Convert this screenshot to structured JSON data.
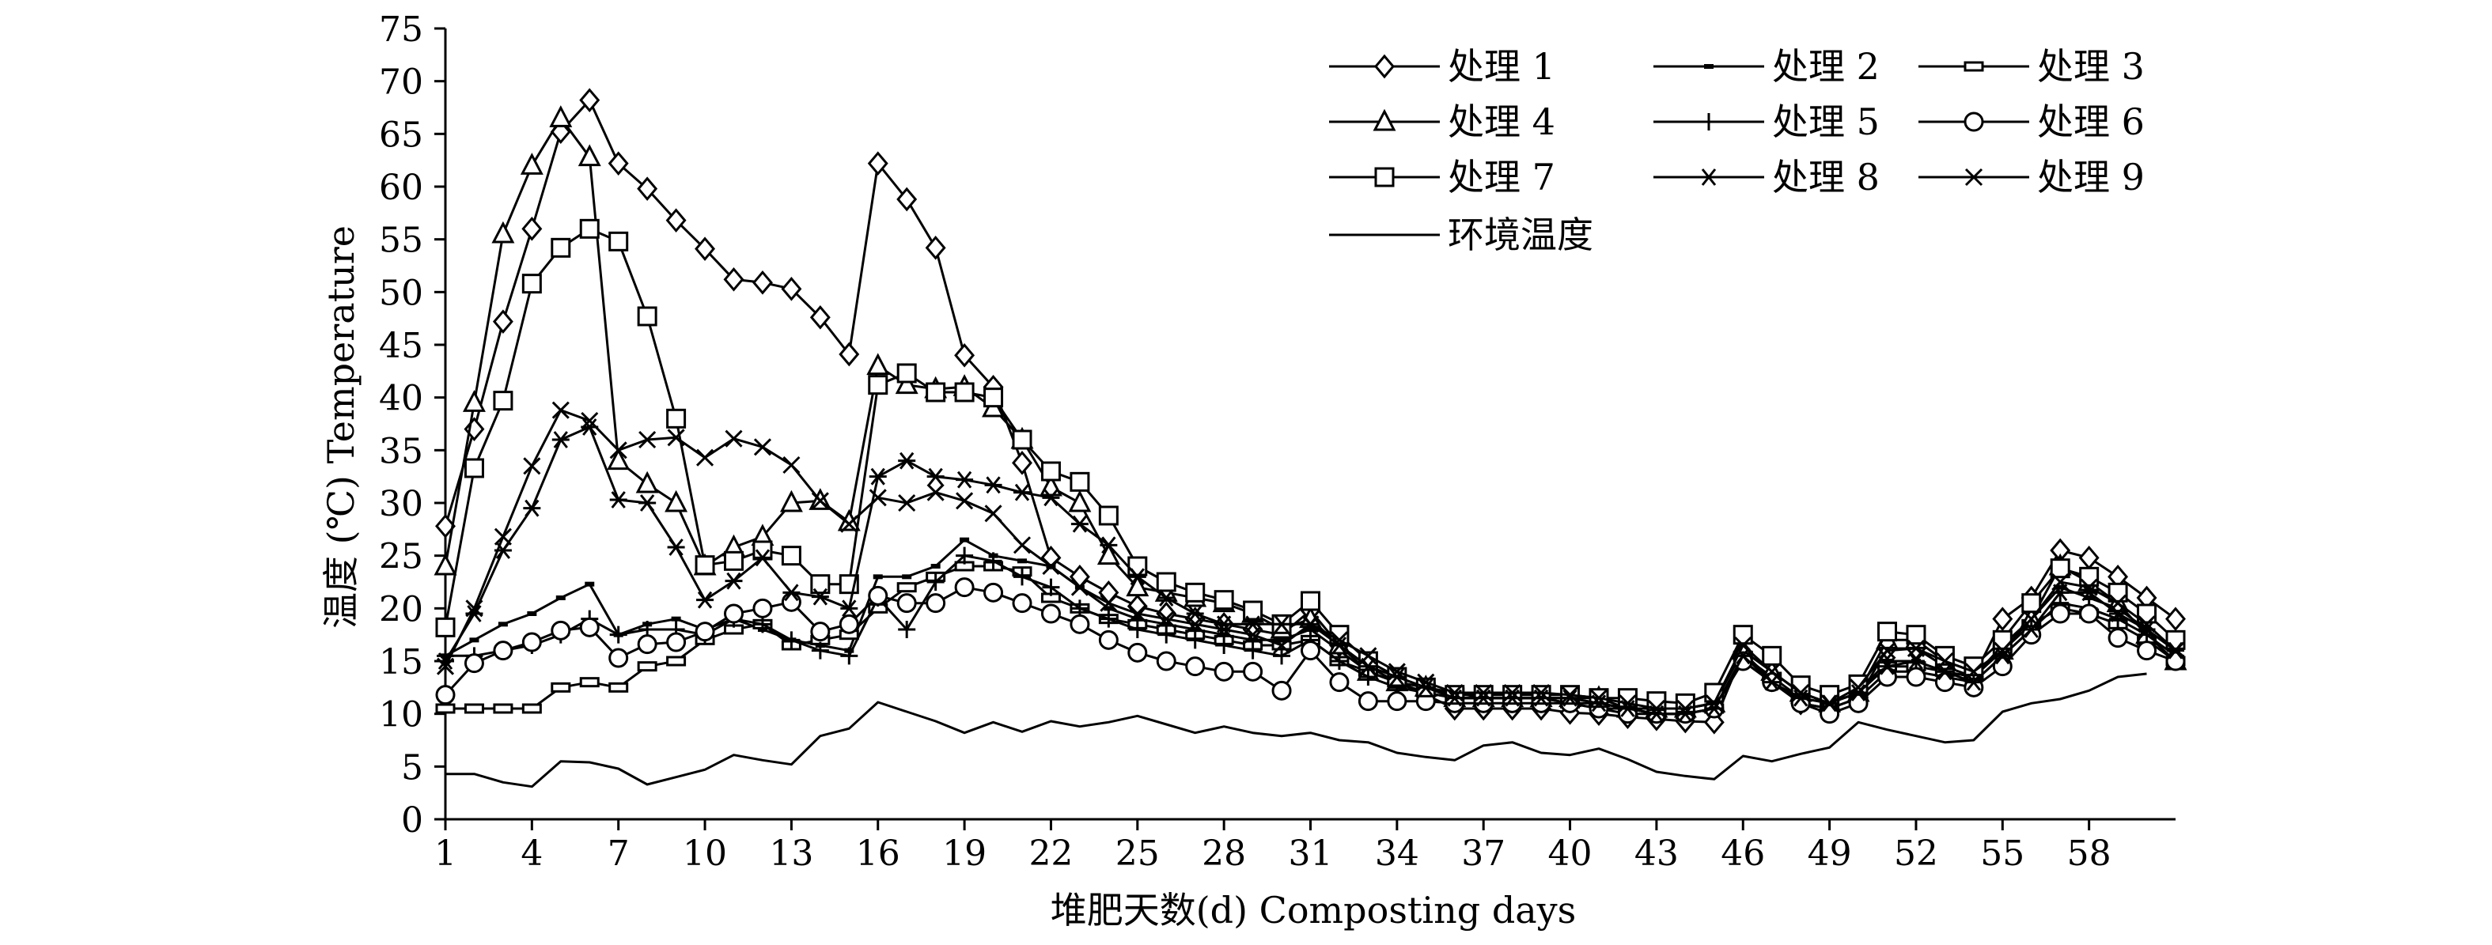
{
  "chart_data": {
    "type": "line",
    "title": "",
    "xlabel": "堆肥天数(d) Composting days",
    "ylabel": "温度 (℃) Temperature",
    "xlim": [
      1,
      61
    ],
    "ylim": [
      0,
      75
    ],
    "x_ticks": [
      1,
      4,
      7,
      10,
      13,
      16,
      19,
      22,
      25,
      28,
      31,
      34,
      37,
      40,
      43,
      46,
      49,
      52,
      55,
      58
    ],
    "y_ticks": [
      0,
      5,
      10,
      15,
      20,
      25,
      30,
      35,
      40,
      45,
      50,
      55,
      60,
      65,
      70,
      75
    ],
    "grid": false,
    "legend_position": "top-right",
    "x": [
      1,
      2,
      3,
      4,
      5,
      6,
      7,
      8,
      9,
      10,
      11,
      12,
      13,
      14,
      15,
      16,
      17,
      18,
      19,
      20,
      21,
      22,
      23,
      24,
      25,
      26,
      27,
      28,
      29,
      30,
      31,
      32,
      33,
      34,
      35,
      36,
      37,
      38,
      39,
      40,
      41,
      42,
      43,
      44,
      45,
      46,
      47,
      48,
      49,
      50,
      51,
      52,
      53,
      54,
      55,
      56,
      57,
      58,
      59,
      60,
      61
    ],
    "series": [
      {
        "name": "处理 1",
        "marker": "diamond",
        "values": [
          27.8,
          37,
          47.2,
          56,
          65.2,
          68.2,
          62.2,
          59.8,
          56.8,
          54.1,
          51.2,
          50.9,
          50.3,
          47.6,
          44.1,
          62.2,
          58.8,
          54.2,
          44,
          41,
          33.8,
          24.8,
          23,
          21.5,
          20.2,
          19.5,
          19,
          18.5,
          18,
          17.5,
          19.8,
          16.5,
          14.5,
          13,
          11.8,
          10.5,
          10.5,
          10.5,
          10.5,
          10.1,
          10,
          9.7,
          9.5,
          9.3,
          9.2,
          15.8,
          13.2,
          11,
          10.5,
          11.5,
          16.2,
          16.2,
          14.5,
          13.5,
          19,
          21,
          25.5,
          24.8,
          23,
          21,
          19
        ]
      },
      {
        "name": "处理 2",
        "marker": "dash",
        "values": [
          15.5,
          17,
          18.5,
          19.5,
          21,
          22.3,
          17.5,
          18.5,
          19,
          18,
          19,
          18,
          17,
          16.5,
          16,
          23,
          23,
          24,
          26.5,
          25,
          24.5,
          24,
          22,
          20,
          19,
          18.5,
          18,
          17.5,
          17,
          17,
          18,
          16,
          14,
          13,
          12,
          11.5,
          11.5,
          11.5,
          11.5,
          11.5,
          11,
          10.5,
          10.5,
          10.5,
          11,
          16,
          14,
          12,
          11,
          12,
          15,
          15,
          14,
          13.5,
          16.5,
          19,
          22,
          21,
          20,
          18,
          16
        ]
      },
      {
        "name": "处理 3",
        "marker": "bar",
        "values": [
          10.5,
          10.5,
          10.5,
          10.5,
          12.5,
          13,
          12.5,
          14.5,
          15,
          17,
          18,
          18.5,
          16.5,
          17,
          17.5,
          20,
          22,
          23,
          24,
          24,
          23.5,
          21,
          20,
          19,
          18.5,
          18,
          17.5,
          17,
          16.5,
          16.5,
          17,
          15,
          14,
          13,
          12.5,
          12,
          11.5,
          11.5,
          11.5,
          11,
          11,
          10.5,
          10,
          10,
          10.5,
          15.5,
          13.5,
          11.5,
          11,
          12,
          14.5,
          14.5,
          14,
          13.5,
          16,
          18.5,
          20,
          19.5,
          18.5,
          17,
          15
        ]
      },
      {
        "name": "处理 4",
        "marker": "triangle",
        "values": [
          24,
          39.5,
          55.5,
          62,
          66.5,
          62.8,
          34,
          31.8,
          30,
          24,
          25.8,
          26.8,
          30,
          30.2,
          28.2,
          43,
          41.2,
          40.8,
          41,
          39,
          36,
          31.5,
          30,
          25,
          22,
          21.5,
          21,
          20.5,
          19.5,
          18,
          19,
          16.5,
          14,
          13,
          12.5,
          11.5,
          11.5,
          11.5,
          11.5,
          11.5,
          11.5,
          10.5,
          10.5,
          10.5,
          11,
          16,
          14,
          12,
          11,
          12,
          17,
          17,
          15,
          14,
          16,
          19,
          24,
          22.5,
          20.5,
          17.5,
          15
        ]
      },
      {
        "name": "处理 5",
        "marker": "plus",
        "values": [
          15.5,
          15.5,
          16,
          16.5,
          17.5,
          19,
          17.5,
          18,
          18,
          17.5,
          19,
          18.5,
          17,
          16,
          15.5,
          21,
          18,
          22.5,
          25,
          24.5,
          23,
          22,
          20,
          19,
          18,
          17.5,
          17,
          16.5,
          16,
          15.5,
          17,
          15,
          13.5,
          12.5,
          12,
          11.5,
          11.5,
          11.5,
          11.5,
          11,
          10.5,
          10.5,
          10,
          10,
          10.5,
          15,
          13,
          11,
          10.5,
          11.5,
          14,
          14,
          13.5,
          13,
          15.5,
          18,
          20.5,
          20,
          19,
          17.5,
          15.5
        ]
      },
      {
        "name": "处理 6",
        "marker": "circle",
        "values": [
          11.8,
          14.8,
          16,
          16.8,
          17.9,
          18.2,
          15.3,
          16.6,
          16.8,
          17.8,
          19.5,
          20,
          20.6,
          17.8,
          18.5,
          21.2,
          20.5,
          20.5,
          22,
          21.5,
          20.5,
          19.5,
          18.5,
          17,
          15.8,
          15,
          14.5,
          14,
          14,
          12.2,
          16,
          13,
          11.2,
          11.2,
          11.2,
          11,
          11,
          11,
          11,
          11,
          10.5,
          10,
          10,
          10,
          10.5,
          15,
          13,
          11,
          10,
          11,
          13.5,
          13.5,
          13,
          12.5,
          14.5,
          17.5,
          19.5,
          19.5,
          17.2,
          16,
          15
        ]
      },
      {
        "name": "处理 7",
        "marker": "square",
        "values": [
          18.2,
          33.3,
          39.7,
          50.8,
          54.2,
          56,
          54.8,
          47.7,
          38,
          24.1,
          24.5,
          25.5,
          25,
          22.3,
          22.3,
          41.2,
          42.3,
          40.5,
          40.5,
          40,
          36,
          33,
          32,
          28.8,
          24,
          22.5,
          21.5,
          20.8,
          19.8,
          18.5,
          20.7,
          17.5,
          15,
          13.5,
          12.5,
          11.8,
          11.8,
          11.8,
          11.8,
          11.8,
          11.5,
          11.5,
          11.2,
          11,
          12,
          17.5,
          15.5,
          12.7,
          11.8,
          12.8,
          17.8,
          17.5,
          15.5,
          14.5,
          17,
          20.5,
          23.8,
          23,
          21.5,
          19.5,
          17
        ]
      },
      {
        "name": "处理 8",
        "marker": "asterisk",
        "values": [
          15,
          19.5,
          25.5,
          29.5,
          36,
          37.2,
          30.3,
          30,
          25.8,
          20.8,
          22.6,
          24.8,
          21.5,
          21.1,
          20,
          32.5,
          34,
          32.5,
          32.2,
          31.7,
          31,
          30.5,
          28,
          26,
          23,
          21,
          19.5,
          18.5,
          18.5,
          18.5,
          18.5,
          16.5,
          14.5,
          13.5,
          12.5,
          11.5,
          11.5,
          11.5,
          11.5,
          11.5,
          11,
          10.5,
          10,
          10,
          10.5,
          15.5,
          13,
          11.5,
          11,
          12,
          14.5,
          15,
          14,
          13,
          15.5,
          18,
          21.5,
          21.5,
          19.5,
          18,
          16
        ]
      },
      {
        "name": "处理 9",
        "marker": "x",
        "values": [
          14.5,
          20,
          26.8,
          33.5,
          38.8,
          37.8,
          35,
          36,
          36.2,
          34.3,
          36.1,
          35.3,
          33.6,
          30.2,
          28,
          30.5,
          30,
          31,
          30.2,
          29,
          26,
          24,
          22,
          20.5,
          19.5,
          19,
          18.5,
          18,
          17.5,
          16.5,
          18.5,
          17,
          15.5,
          14,
          13,
          12,
          12,
          12,
          12,
          11.8,
          11.5,
          11,
          10.5,
          10.5,
          11,
          16.5,
          14,
          12,
          11,
          12.5,
          16,
          16.2,
          15,
          14,
          16,
          19,
          22.5,
          22,
          20.5,
          18.5,
          16
        ]
      },
      {
        "name": "环境温度",
        "marker": "none",
        "values": [
          4.3,
          4.3,
          3.5,
          3.1,
          5.5,
          5.4,
          4.8,
          3.3,
          4,
          4.7,
          6.1,
          5.6,
          5.2,
          7.9,
          8.6,
          11.1,
          10.2,
          9.3,
          8.2,
          9.2,
          8.3,
          9.3,
          8.8,
          9.2,
          9.8,
          9,
          8.2,
          8.8,
          8.2,
          7.9,
          8.2,
          7.5,
          7.3,
          6.3,
          5.9,
          5.6,
          7,
          7.3,
          6.3,
          6.1,
          6.7,
          5.7,
          4.5,
          4.1,
          3.8,
          6,
          5.5,
          6.2,
          6.8,
          9.2,
          8.5,
          7.9,
          7.3,
          7.5,
          10.2,
          11,
          11.4,
          12.2,
          13.5,
          13.8,
          null
        ]
      }
    ]
  }
}
